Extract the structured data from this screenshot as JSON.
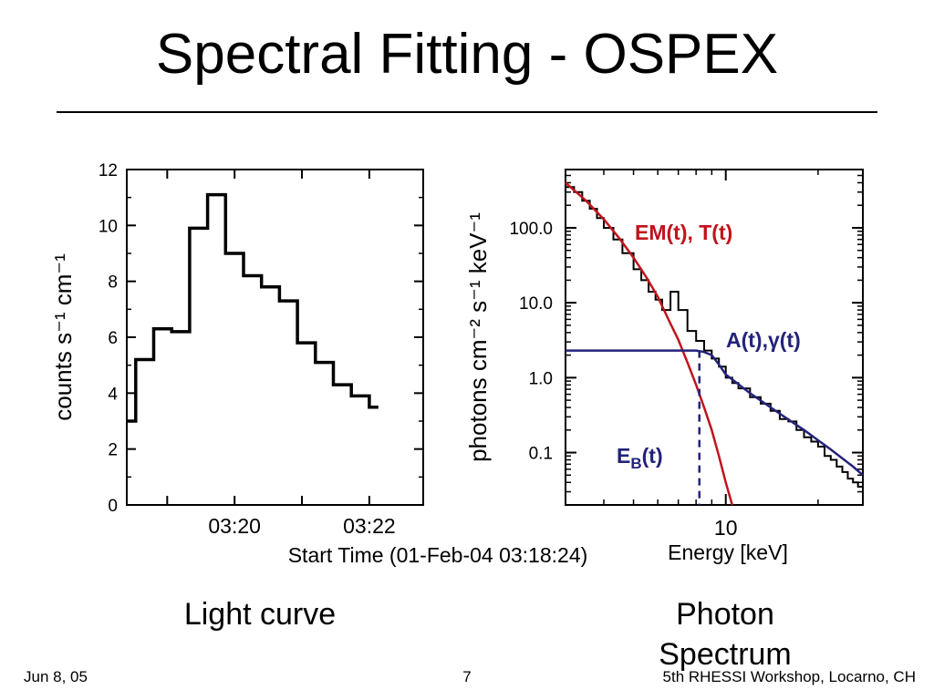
{
  "slide": {
    "title": "Spectral Fitting - OSPEX",
    "caption_left": "Light curve",
    "caption_right": "Photon Spectrum",
    "footer_left": "Jun 8, 05",
    "footer_center": "7",
    "footer_right": "5th RHESSI Workshop, Locarno, CH"
  },
  "chart_data": [
    {
      "type": "line",
      "style": "step",
      "title": "",
      "xlabel": "Start Time (01-Feb-04 03:18:24)",
      "ylabel": "counts s⁻¹ cm⁻¹",
      "x_ticks": [
        "03:20",
        "03:22"
      ],
      "y_ticks": [
        0,
        2,
        4,
        6,
        8,
        10,
        12
      ],
      "ylim": [
        0,
        12
      ],
      "xlim": [
        "03:18:24",
        "03:22:48"
      ],
      "grid": false,
      "series": [
        {
          "x": [
            "03:18:24",
            "03:18:32",
            "03:18:48",
            "03:19:04",
            "03:19:20",
            "03:19:36",
            "03:19:52",
            "03:20:08",
            "03:20:24",
            "03:20:40",
            "03:20:56",
            "03:21:12",
            "03:21:28",
            "03:21:44",
            "03:22:00",
            "03:22:08"
          ],
          "values": [
            3.0,
            5.2,
            6.3,
            6.2,
            9.9,
            11.1,
            9.0,
            8.2,
            7.8,
            7.3,
            5.8,
            5.1,
            4.3,
            3.9,
            3.5,
            3.5
          ]
        }
      ]
    },
    {
      "type": "line",
      "title": "",
      "xlabel": "Energy [keV]",
      "ylabel": "photons cm⁻² s⁻¹ keV⁻¹",
      "x_scale": "log",
      "y_scale": "log",
      "x_ticks": [
        "10"
      ],
      "y_ticks": [
        "0.1",
        "1.0",
        "10.0",
        "100.0"
      ],
      "xlim": [
        3,
        28
      ],
      "ylim": [
        0.02,
        600
      ],
      "grid": false,
      "annotations": [
        {
          "text": "EM(t), T(t)",
          "color": "#c0141c"
        },
        {
          "text": "A(t),γ(t)",
          "color": "#23237a"
        },
        {
          "text": "E",
          "sub": "B",
          "tail": "(t)",
          "color": "#23237a"
        }
      ],
      "series": [
        {
          "kind": "data",
          "color": "#000000",
          "x": [
            3.0,
            3.2,
            3.4,
            3.6,
            3.8,
            4.0,
            4.3,
            4.6,
            5.0,
            5.3,
            5.6,
            5.9,
            6.2,
            6.6,
            7.0,
            7.5,
            8.0,
            8.5,
            9.0,
            9.5,
            10.0,
            10.5,
            11.0,
            12.0,
            13.0,
            14.0,
            15.0,
            16.0,
            17.0,
            18.0,
            19.0,
            20.0,
            21.0,
            22.0,
            23.0,
            24.0,
            25.0,
            26.0,
            27.0,
            28.0
          ],
          "values": [
            350,
            300,
            230,
            180,
            135,
            100,
            70,
            46,
            28,
            20,
            14,
            11,
            8,
            14,
            8,
            4.2,
            3.1,
            2.3,
            1.8,
            1.4,
            1.0,
            0.85,
            0.72,
            0.55,
            0.45,
            0.36,
            0.28,
            0.26,
            0.2,
            0.16,
            0.14,
            0.12,
            0.09,
            0.08,
            0.065,
            0.055,
            0.045,
            0.04,
            0.035,
            0.03
          ]
        },
        {
          "kind": "thermal",
          "color": "#c0141c",
          "x": [
            3.0,
            3.5,
            4.0,
            4.5,
            5.0,
            5.5,
            6.0,
            6.5,
            7.0,
            7.5,
            8.0,
            8.5,
            9.0,
            9.5,
            10.0,
            10.5
          ],
          "values": [
            400,
            230,
            130,
            72,
            40,
            22,
            12,
            6,
            3.2,
            1.6,
            0.8,
            0.4,
            0.2,
            0.09,
            0.04,
            0.018
          ]
        },
        {
          "kind": "nonthermal",
          "color": "#23237a",
          "x": [
            3.0,
            5.0,
            8.0,
            8.5,
            9.0,
            9.5,
            10.0,
            12.0,
            15.0,
            18.0,
            22.0,
            26.0,
            28.0
          ],
          "values": [
            2.3,
            2.3,
            2.3,
            2.2,
            2.0,
            1.5,
            1.1,
            0.62,
            0.33,
            0.2,
            0.11,
            0.065,
            0.05
          ]
        }
      ],
      "break_energy": 8.2
    }
  ]
}
